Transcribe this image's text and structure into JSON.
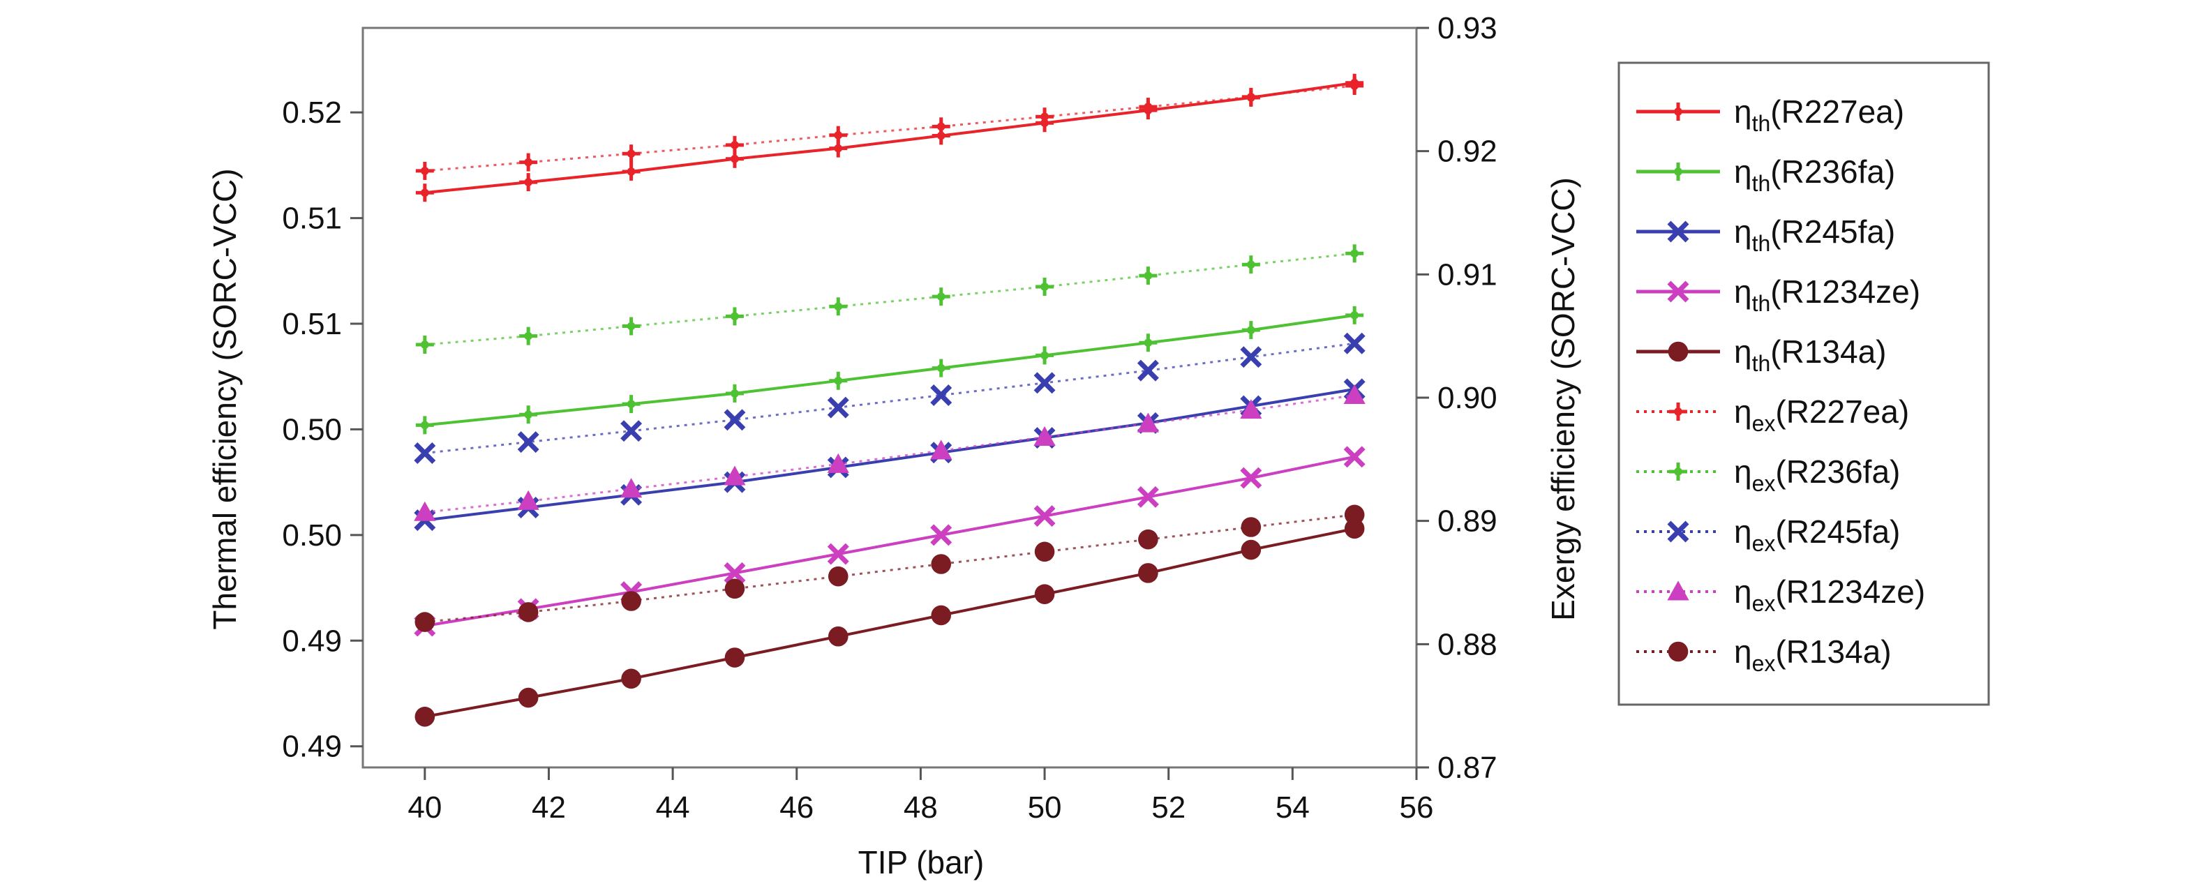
{
  "chart_data": {
    "type": "line",
    "xlabel": "TIP (bar)",
    "ylabel_left": "Thermal efficiency (SORC-VCC)",
    "ylabel_right": "Exergy efficiency (SORC-VCC)",
    "xlim": [
      39,
      56
    ],
    "xticks": [
      40,
      42,
      44,
      46,
      48,
      50,
      52,
      54,
      56
    ],
    "xtick_labels": [
      "40",
      "42",
      "44",
      "46",
      "48",
      "50",
      "52",
      "54",
      "56"
    ],
    "ylim_left": [
      0.485,
      0.52
    ],
    "yticks_left": [
      0.486,
      0.491,
      0.496,
      0.501,
      0.506,
      0.511,
      0.516,
      0.521
    ],
    "ytick_labels_left": [
      "0.49",
      "0.49",
      "0.50",
      "0.50",
      "0.51",
      "0.51",
      "0.52"
    ],
    "ylim_right": [
      0.87,
      0.93
    ],
    "yticks_right": [
      0.87,
      0.88,
      0.89,
      0.9,
      0.91,
      0.92,
      0.93
    ],
    "ytick_labels_right": [
      "0.87",
      "0.88",
      "0.89",
      "0.90",
      "0.91",
      "0.92",
      "0.93"
    ],
    "x": [
      40,
      41.67,
      43.33,
      45,
      46.67,
      48.33,
      50,
      51.67,
      53.33,
      55
    ],
    "grid": false,
    "legend_position": "right-outside",
    "series": [
      {
        "name": "R227ea",
        "prefix": "η",
        "sub": "th",
        "axis": "left",
        "color": "#e8232a",
        "marker": "plus",
        "dash": "solid",
        "values": [
          0.5122,
          0.5127,
          0.5132,
          0.5138,
          0.5143,
          0.5149,
          0.5155,
          0.5161,
          0.5167,
          0.5174
        ]
      },
      {
        "name": "R236fa",
        "prefix": "η",
        "sub": "th",
        "axis": "left",
        "color": "#4fc234",
        "marker": "plus",
        "dash": "solid",
        "values": [
          0.5012,
          0.5017,
          0.5022,
          0.5027,
          0.5033,
          0.5039,
          0.5045,
          0.5051,
          0.5057,
          0.5064
        ]
      },
      {
        "name": "R245fa",
        "prefix": "η",
        "sub": "th",
        "axis": "left",
        "color": "#3a3fb0",
        "marker": "x",
        "dash": "solid",
        "values": [
          0.4967,
          0.4973,
          0.4979,
          0.4985,
          0.4992,
          0.4999,
          0.5006,
          0.5013,
          0.5021,
          0.5029
        ]
      },
      {
        "name": "R1234ze",
        "prefix": "η",
        "sub": "th",
        "axis": "left",
        "color": "#cc3fc0",
        "marker": "x",
        "dash": "solid",
        "values": [
          0.4917,
          0.4925,
          0.4933,
          0.4942,
          0.4951,
          0.496,
          0.4969,
          0.4978,
          0.4987,
          0.4997
        ]
      },
      {
        "name": "R134a",
        "prefix": "η",
        "sub": "th",
        "axis": "left",
        "color": "#7a1c22",
        "marker": "circle",
        "dash": "solid",
        "values": [
          0.4874,
          0.4883,
          0.4892,
          0.4902,
          0.4912,
          0.4922,
          0.4932,
          0.4942,
          0.4953,
          0.4963
        ]
      },
      {
        "name": "R227ea",
        "prefix": "η",
        "sub": "ex",
        "axis": "right",
        "color": "#e8232a",
        "marker": "plus",
        "dash": "dotted",
        "values": [
          0.9184,
          0.9191,
          0.9198,
          0.9205,
          0.9213,
          0.922,
          0.9228,
          0.9236,
          0.9244,
          0.9253
        ]
      },
      {
        "name": "R236fa",
        "prefix": "η",
        "sub": "ex",
        "axis": "right",
        "color": "#4fc234",
        "marker": "plus",
        "dash": "dotted",
        "values": [
          0.9043,
          0.905,
          0.9058,
          0.9066,
          0.9074,
          0.9082,
          0.909,
          0.9099,
          0.9108,
          0.9117
        ]
      },
      {
        "name": "R245fa",
        "prefix": "η",
        "sub": "ex",
        "axis": "right",
        "color": "#3a3fb0",
        "marker": "x",
        "dash": "dotted",
        "values": [
          0.8955,
          0.8964,
          0.8973,
          0.8982,
          0.8992,
          0.9002,
          0.9012,
          0.9022,
          0.9033,
          0.9044
        ]
      },
      {
        "name": "R1234ze",
        "prefix": "η",
        "sub": "ex",
        "axis": "right",
        "color": "#cc3fc0",
        "marker": "triangle",
        "dash": "dotted",
        "values": [
          0.8907,
          0.8916,
          0.8926,
          0.8936,
          0.8946,
          0.8957,
          0.8968,
          0.8979,
          0.899,
          0.9002
        ]
      },
      {
        "name": "R134a",
        "prefix": "η",
        "sub": "ex",
        "axis": "right",
        "color": "#7a1c22",
        "marker": "circle",
        "dash": "dotted",
        "values": [
          0.8818,
          0.8826,
          0.8835,
          0.8845,
          0.8855,
          0.8865,
          0.8875,
          0.8885,
          0.8895,
          0.8905
        ]
      }
    ]
  }
}
